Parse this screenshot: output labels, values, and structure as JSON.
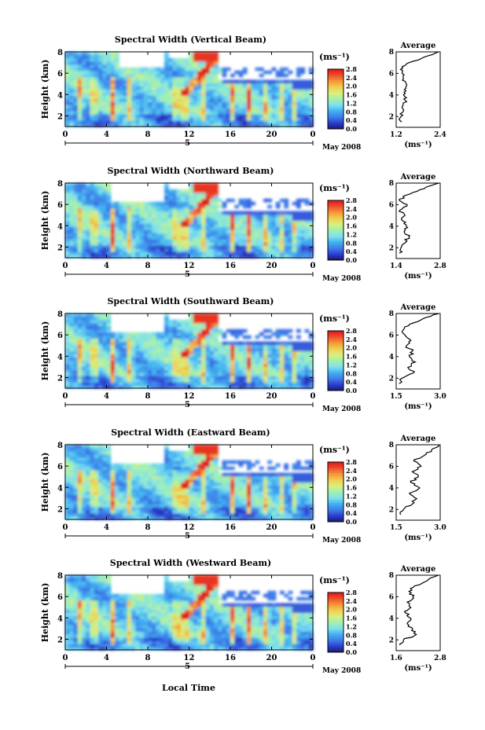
{
  "figure": {
    "x_axis_label": "Local Time",
    "date_label": "May 2008",
    "day_label": "5",
    "colorbar_unit": "(ms⁻¹)",
    "avg_title": "Average",
    "avg_xlabel": "(ms⁻¹)",
    "height_label": "Height (km)"
  },
  "chart_data": [
    {
      "type": "heatmap",
      "title": "Spectral Width (Vertical Beam)",
      "xlabel": "Local Time",
      "ylabel": "Height (km)",
      "xlim": [
        0,
        24
      ],
      "ylim": [
        1,
        8
      ],
      "x_ticks": [
        "0",
        "4",
        "8",
        "12",
        "16",
        "20",
        "0"
      ],
      "y_ticks": [
        "2",
        "4",
        "6",
        "8"
      ],
      "colorbar": {
        "label": "(ms⁻¹)",
        "range": [
          0.0,
          2.8
        ],
        "ticks": [
          "0.0",
          "0.4",
          "0.8",
          "1.2",
          "1.6",
          "2.0",
          "2.4",
          "2.8"
        ]
      },
      "average_profile": {
        "title": "Average",
        "xlabel": "(ms⁻¹)",
        "xlim": [
          1.2,
          2.4
        ],
        "x_ticks": [
          "1.2",
          "2.4"
        ],
        "y_ticks": [
          "2",
          "4",
          "6",
          "8"
        ],
        "height": [
          1.5,
          2.0,
          2.5,
          3.0,
          3.5,
          4.0,
          4.5,
          5.0,
          5.5,
          6.0,
          6.5,
          7.0,
          7.5,
          8.0
        ],
        "values": [
          1.35,
          1.33,
          1.4,
          1.38,
          1.45,
          1.4,
          1.42,
          1.48,
          1.4,
          1.36,
          1.38,
          1.55,
          1.95,
          2.35
        ]
      }
    },
    {
      "type": "heatmap",
      "title": "Spectral Width (Northward Beam)",
      "xlabel": "Local Time",
      "ylabel": "Height (km)",
      "xlim": [
        0,
        24
      ],
      "ylim": [
        1,
        8
      ],
      "x_ticks": [
        "0",
        "4",
        "8",
        "12",
        "16",
        "20",
        "0"
      ],
      "y_ticks": [
        "2",
        "4",
        "6",
        "8"
      ],
      "colorbar": {
        "label": "(ms⁻¹)",
        "range": [
          0.0,
          2.8
        ],
        "ticks": [
          "0.0",
          "0.4",
          "0.8",
          "1.2",
          "1.6",
          "2.0",
          "2.4",
          "2.8"
        ]
      },
      "average_profile": {
        "title": "Average",
        "xlabel": "(ms⁻¹)",
        "xlim": [
          1.4,
          2.8
        ],
        "x_ticks": [
          "1.4",
          "2.8"
        ],
        "y_ticks": [
          "2",
          "4",
          "6",
          "8"
        ],
        "height": [
          1.5,
          2.0,
          2.5,
          3.0,
          3.5,
          4.0,
          4.5,
          5.0,
          5.5,
          6.0,
          6.5,
          7.0,
          7.5,
          8.0
        ],
        "values": [
          1.5,
          1.55,
          1.7,
          1.8,
          1.65,
          1.72,
          1.6,
          1.68,
          1.52,
          1.75,
          1.5,
          1.85,
          2.3,
          2.75
        ]
      }
    },
    {
      "type": "heatmap",
      "title": "Spectral Width (Southward Beam)",
      "xlabel": "Local Time",
      "ylabel": "Height (km)",
      "xlim": [
        0,
        24
      ],
      "ylim": [
        1,
        8
      ],
      "x_ticks": [
        "0",
        "4",
        "8",
        "12",
        "16",
        "20",
        "0"
      ],
      "y_ticks": [
        "2",
        "4",
        "6",
        "8"
      ],
      "colorbar": {
        "label": "(ms⁻¹)",
        "range": [
          0.0,
          2.8
        ],
        "ticks": [
          "0.0",
          "0.4",
          "0.8",
          "1.2",
          "1.6",
          "2.0",
          "2.4",
          "2.8"
        ]
      },
      "average_profile": {
        "title": "Average",
        "xlabel": "(ms⁻¹)",
        "xlim": [
          1.5,
          3.0
        ],
        "x_ticks": [
          "1.5",
          "3.0"
        ],
        "y_ticks": [
          "2",
          "4",
          "6",
          "8"
        ],
        "height": [
          1.5,
          2.0,
          2.5,
          3.0,
          3.5,
          4.0,
          4.5,
          5.0,
          5.5,
          6.0,
          6.5,
          7.0,
          7.5,
          8.0
        ],
        "values": [
          1.6,
          1.7,
          2.1,
          1.9,
          2.15,
          1.95,
          2.05,
          1.85,
          2.0,
          1.8,
          1.75,
          1.95,
          2.4,
          2.95
        ]
      }
    },
    {
      "type": "heatmap",
      "title": "Spectral Width (Eastward Beam)",
      "xlabel": "Local Time",
      "ylabel": "Height (km)",
      "xlim": [
        0,
        24
      ],
      "ylim": [
        1,
        8
      ],
      "x_ticks": [
        "0",
        "4",
        "8",
        "12",
        "16",
        "20",
        "0"
      ],
      "y_ticks": [
        "2",
        "4",
        "6",
        "8"
      ],
      "colorbar": {
        "label": "(ms⁻¹)",
        "range": [
          0.0,
          2.8
        ],
        "ticks": [
          "0.0",
          "0.4",
          "0.8",
          "1.2",
          "1.6",
          "2.0",
          "2.4",
          "2.8"
        ]
      },
      "average_profile": {
        "title": "Average",
        "xlabel": "(ms⁻¹)",
        "xlim": [
          1.5,
          3.0
        ],
        "x_ticks": [
          "1.5",
          "3.0"
        ],
        "y_ticks": [
          "2",
          "4",
          "6",
          "8"
        ],
        "height": [
          1.5,
          2.0,
          2.5,
          3.0,
          3.5,
          4.0,
          4.5,
          5.0,
          5.5,
          6.0,
          6.5,
          7.0,
          7.5,
          8.0
        ],
        "values": [
          1.65,
          1.75,
          2.05,
          2.2,
          1.95,
          2.3,
          2.0,
          2.25,
          2.05,
          2.35,
          2.1,
          2.45,
          2.7,
          2.95
        ]
      }
    },
    {
      "type": "heatmap",
      "title": "Spectral Width (Westward Beam)",
      "xlabel": "Local Time",
      "ylabel": "Height (km)",
      "xlim": [
        0,
        24
      ],
      "ylim": [
        1,
        8
      ],
      "x_ticks": [
        "0",
        "4",
        "8",
        "12",
        "16",
        "20",
        "0"
      ],
      "y_ticks": [
        "2",
        "4",
        "6",
        "8"
      ],
      "colorbar": {
        "label": "(ms⁻¹)",
        "range": [
          0.0,
          2.8
        ],
        "ticks": [
          "0.0",
          "0.4",
          "0.8",
          "1.2",
          "1.6",
          "2.0",
          "2.4",
          "2.8"
        ]
      },
      "average_profile": {
        "title": "Average",
        "xlabel": "(ms⁻¹)",
        "xlim": [
          1.6,
          2.8
        ],
        "x_ticks": [
          "1.6",
          "2.8"
        ],
        "y_ticks": [
          "2",
          "4",
          "6",
          "8"
        ],
        "height": [
          1.5,
          2.0,
          2.5,
          3.0,
          3.5,
          4.0,
          4.5,
          5.0,
          5.5,
          6.0,
          6.5,
          7.0,
          7.5,
          8.0
        ],
        "values": [
          1.7,
          1.8,
          2.15,
          2.05,
          1.9,
          2.0,
          1.85,
          2.0,
          1.9,
          2.05,
          1.95,
          2.1,
          2.45,
          2.75
        ]
      }
    }
  ],
  "colors": {
    "colormap": [
      "#1a1a6a",
      "#2b3cd0",
      "#3f7ce8",
      "#3fb0f0",
      "#7fe0f0",
      "#a0f0b0",
      "#d8f080",
      "#f0d050",
      "#f59a35",
      "#ef5030",
      "#e01818"
    ]
  }
}
